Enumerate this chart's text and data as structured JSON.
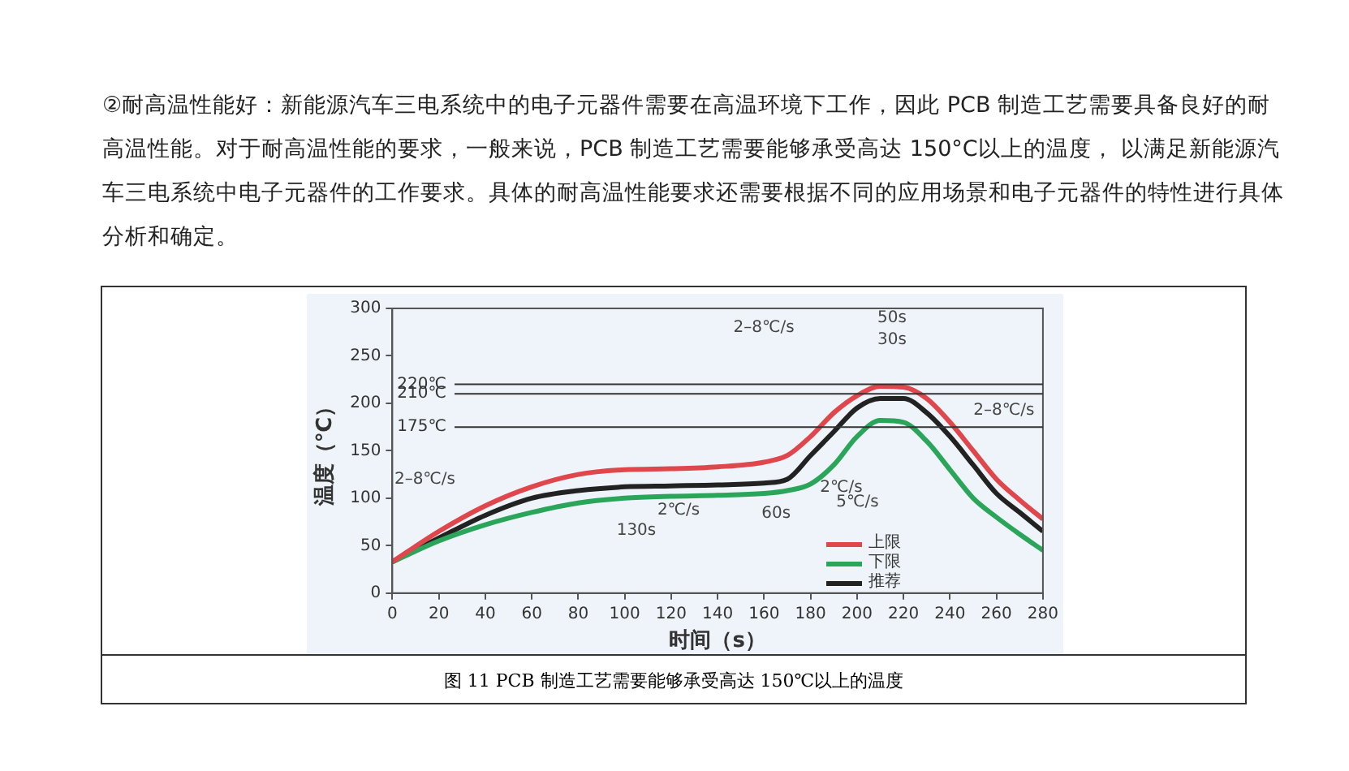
{
  "chart_data": {
    "type": "line",
    "subtitle": "②耐高温性能好：新能源汽车三电系统中的电子元器件需要在高温环境下工作，因此 PCB 制造工艺需要具备良好的耐高温性能。对于耐高温性能的要求，一般来说，PCB 制造工艺需要能够承受高达 150°C以上的温度， 以满足新能源汽车三电系统中电子元器件的工作要求。具体的耐高温性能要求还需要根据不同的应用场景和电子元器件的特性进行具体分析和确定。",
    "xlabel": "时间（s）",
    "ylabel": "温度（℃）",
    "x": [
      0,
      20,
      40,
      60,
      80,
      100,
      120,
      140,
      160,
      170,
      180,
      190,
      200,
      210,
      220,
      230,
      240,
      250,
      260,
      270,
      280
    ],
    "series": [
      {
        "name": "上限",
        "color": "#e0474c",
        "values": [
          33,
          65,
          92,
          112,
          125,
          130,
          131,
          133,
          138,
          145,
          165,
          190,
          208,
          218,
          217,
          205,
          180,
          150,
          120,
          98,
          78
        ]
      },
      {
        "name": "下限",
        "color": "#2aa55a",
        "values": [
          33,
          55,
          72,
          85,
          95,
          100,
          102,
          103,
          105,
          108,
          115,
          135,
          165,
          182,
          180,
          160,
          130,
          100,
          80,
          62,
          45
        ]
      },
      {
        "name": "推荐",
        "color": "#222222",
        "values": [
          33,
          58,
          82,
          100,
          108,
          112,
          113,
          114,
          116,
          120,
          145,
          170,
          195,
          205,
          205,
          190,
          165,
          135,
          105,
          85,
          65
        ]
      }
    ],
    "xlim": [
      0,
      280
    ],
    "xticks": [
      0,
      20,
      40,
      60,
      80,
      100,
      120,
      140,
      160,
      180,
      200,
      220,
      240,
      260,
      280
    ],
    "ylim": [
      0,
      300
    ],
    "yticks": [
      0,
      50,
      100,
      150,
      200,
      250,
      300
    ],
    "ref_lines": [
      {
        "axis": "y",
        "value": 220,
        "label": "220℃"
      },
      {
        "axis": "y",
        "value": 210,
        "label": "210℃"
      },
      {
        "axis": "y",
        "value": 175,
        "label": "175℃"
      }
    ],
    "annotations": [
      "2–8℃/s",
      "2℃/s",
      "130s",
      "60s",
      "2–8℃/s",
      "50s",
      "30s",
      "2–8℃/s",
      "2℃/s",
      "5℃/s",
      "图 11 PCB 制造工艺需要能够承受高达 150℃以上的温度"
    ],
    "legend": "bottom right",
    "marker": "none",
    "line_style": "solid",
    "grid": false
  }
}
